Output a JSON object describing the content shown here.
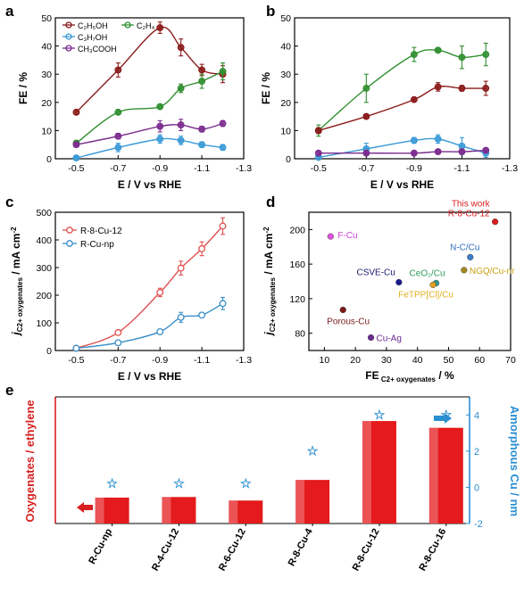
{
  "colors": {
    "c2h5oh": "#8b1a1a",
    "c2h4": "#2f8f2f",
    "c3h7oh": "#3a9ad6",
    "ch3cooh": "#7b2c8e",
    "r8": "#e05050",
    "rnp": "#3a8fc8",
    "bar": "#e41a1c",
    "star": "#2a8fd0",
    "axis_left_e": "#d81e1e",
    "axis_right_e": "#2a8fd0"
  },
  "chart_data": [
    {
      "id": "a",
      "panel_label": "a",
      "type": "line",
      "xlabel": "E / V vs RHE",
      "ylabel": "FE / %",
      "xlim": [
        -0.4,
        -1.3
      ],
      "ylim": [
        0,
        50
      ],
      "xticks": [
        "-0.5",
        "-0.7",
        "-0.9",
        "-1.1",
        "-1.3"
      ],
      "xtick_values": [
        -0.5,
        -0.7,
        -0.9,
        -1.1,
        -1.3
      ],
      "yticks": [
        0,
        10,
        20,
        30,
        40,
        50
      ],
      "x": [
        -0.5,
        -0.7,
        -0.9,
        -1.0,
        -1.1,
        -1.2
      ],
      "legend": [
        "C₂H₅OH",
        "C₂H₄",
        "C₃H₇OH",
        "CH₃COOH"
      ],
      "series": [
        {
          "name": "C₂H₅OH",
          "color_key": "c2h5oh",
          "values": [
            16.5,
            31.5,
            46.5,
            39.5,
            31.5,
            30
          ],
          "errors": [
            0.8,
            2.5,
            2,
            3,
            2,
            3
          ]
        },
        {
          "name": "C₂H₄",
          "color_key": "c2h4",
          "values": [
            5.5,
            16.5,
            18.5,
            25,
            27.5,
            31
          ],
          "errors": [
            1,
            0.8,
            0.8,
            1.5,
            2.5,
            3
          ]
        },
        {
          "name": "C₃H₇OH",
          "color_key": "c3h7oh",
          "values": [
            0.3,
            4,
            7,
            6.5,
            5,
            4
          ],
          "errors": [
            0.3,
            1.5,
            1.5,
            1.5,
            1,
            1
          ]
        },
        {
          "name": "CH₃COOH",
          "color_key": "ch3cooh",
          "values": [
            5,
            8,
            11.5,
            12,
            10.5,
            12.5
          ],
          "errors": [
            0.5,
            1,
            2,
            2,
            1,
            1
          ]
        }
      ]
    },
    {
      "id": "b",
      "panel_label": "b",
      "type": "line",
      "xlabel": "E / V vs RHE",
      "ylabel": "FE / %",
      "xlim": [
        -0.4,
        -1.3
      ],
      "ylim": [
        0,
        50
      ],
      "xticks": [
        "-0.5",
        "-0.7",
        "-0.9",
        "-1.1",
        "-1.3"
      ],
      "xtick_values": [
        -0.5,
        -0.7,
        -0.9,
        -1.1,
        -1.3
      ],
      "yticks": [
        0,
        10,
        20,
        30,
        40,
        50
      ],
      "x": [
        -0.5,
        -0.7,
        -0.9,
        -1.0,
        -1.1,
        -1.2
      ],
      "series": [
        {
          "color_key": "c2h4",
          "values": [
            10,
            25,
            37,
            38.5,
            36,
            37
          ],
          "errors": [
            2,
            5,
            2.5,
            0.5,
            4,
            4
          ]
        },
        {
          "color_key": "c2h5oh",
          "values": [
            10,
            15,
            21,
            25.5,
            25,
            25
          ],
          "errors": [
            1,
            0.5,
            0.5,
            1.5,
            1,
            2.5
          ]
        },
        {
          "color_key": "c3h7oh",
          "values": [
            0.5,
            3.5,
            6.5,
            7,
            4.5,
            2
          ],
          "errors": [
            0.3,
            2,
            1,
            1.5,
            3,
            1.5
          ]
        },
        {
          "color_key": "ch3cooh",
          "values": [
            2,
            2,
            2,
            2.5,
            2.5,
            3
          ],
          "errors": [
            0.5,
            0.5,
            0.5,
            0.5,
            0.5,
            0.5
          ]
        }
      ]
    },
    {
      "id": "c",
      "panel_label": "c",
      "type": "line",
      "xlabel": "E / V vs RHE",
      "ylabel_main": "j",
      "ylabel_sub": "C2+ oxygenates",
      "ylabel_unit": " / mA cm",
      "ylabel_sup": "-2",
      "xlim": [
        -0.4,
        -1.3
      ],
      "ylim": [
        0,
        500
      ],
      "xticks": [
        "-0.5",
        "-0.7",
        "-0.9",
        "-1.1",
        "-1.3"
      ],
      "xtick_values": [
        -0.5,
        -0.7,
        -0.9,
        -1.1,
        -1.3
      ],
      "yticks": [
        0,
        100,
        200,
        300,
        400,
        500
      ],
      "x": [
        -0.5,
        -0.7,
        -0.9,
        -1.0,
        -1.1,
        -1.2
      ],
      "legend": [
        "R-8-Cu-12",
        "R-Cu-np"
      ],
      "series": [
        {
          "name": "R-8-Cu-12",
          "color_key": "r8",
          "values": [
            8,
            65,
            210,
            298,
            368,
            450
          ],
          "errors": [
            3,
            5,
            15,
            25,
            25,
            30
          ]
        },
        {
          "name": "R-Cu-np",
          "color_key": "rnp",
          "values": [
            8,
            28,
            68,
            120,
            128,
            170
          ],
          "errors": [
            3,
            3,
            5,
            18,
            8,
            22
          ]
        }
      ]
    },
    {
      "id": "d",
      "panel_label": "d",
      "type": "scatter",
      "xlabel_main": "FE",
      "xlabel_sub": "C2+ oxygenates",
      "xlabel_unit": " / %",
      "ylabel_main": "j",
      "ylabel_sub": "C2+ oxygenates",
      "ylabel_unit": " / mA cm",
      "ylabel_sup": "-2",
      "xlim": [
        5,
        70
      ],
      "ylim": [
        60,
        220
      ],
      "xticks": [
        10,
        20,
        30,
        40,
        50,
        60,
        70
      ],
      "yticks": [
        80,
        120,
        160,
        200
      ],
      "points": [
        {
          "label": "F-Cu",
          "x": 12,
          "y": 192,
          "color": "#e052e0",
          "label_color": "#d240d8"
        },
        {
          "label": "This work\nR-8-Cu-12",
          "x": 65,
          "y": 209,
          "color": "#d81e1e",
          "label_color": "#d81e1e"
        },
        {
          "label": "N-C/Cu",
          "x": 57,
          "y": 168,
          "color": "#3a7fc8",
          "label_color": "#2f6fbf"
        },
        {
          "label": "CSVE-Cu",
          "x": 34,
          "y": 139,
          "color": "#1a1a8b",
          "label_color": "#1a1a6e"
        },
        {
          "label": "CeO₂/Cu",
          "x": 46,
          "y": 138,
          "color": "#2e9a90",
          "label_color": "#2e9a5a"
        },
        {
          "label": "NGQ/Cu-nr",
          "x": 55,
          "y": 153,
          "color": "#a08a20",
          "label_color": "#c8a010"
        },
        {
          "label": "FeTPP[Cl]/Cu",
          "x": 45,
          "y": 136,
          "color": "#e0a020",
          "label_color": "#e0b020"
        },
        {
          "label": "Porous-Cu",
          "x": 16,
          "y": 107,
          "color": "#7b1a1a",
          "label_color": "#7b1a1a"
        },
        {
          "label": "Cu-Ag",
          "x": 25,
          "y": 75,
          "color": "#6a2a8e",
          "label_color": "#6a2a8e"
        }
      ]
    },
    {
      "id": "e",
      "panel_label": "e",
      "type": "bar",
      "ylabel_left": "Oxygenates / ethylene",
      "ylabel_right": "Amorphous Cu / nm",
      "categories": [
        "R-Cu-np",
        "R-4-Cu-12",
        "R-6-Cu-12",
        "R-8-Cu-4",
        "R-8-Cu-12",
        "R-8-Cu-16"
      ],
      "values": [
        0.88,
        0.9,
        0.78,
        1.48,
        3.48,
        3.25
      ],
      "ylim_left": [
        0,
        4.3
      ],
      "right_values": [
        0.2,
        0.2,
        0.2,
        2.0,
        4.0,
        4.0
      ],
      "ylim_right": [
        -2,
        5
      ],
      "yticks_right": [
        -2,
        0,
        2,
        4
      ]
    }
  ]
}
